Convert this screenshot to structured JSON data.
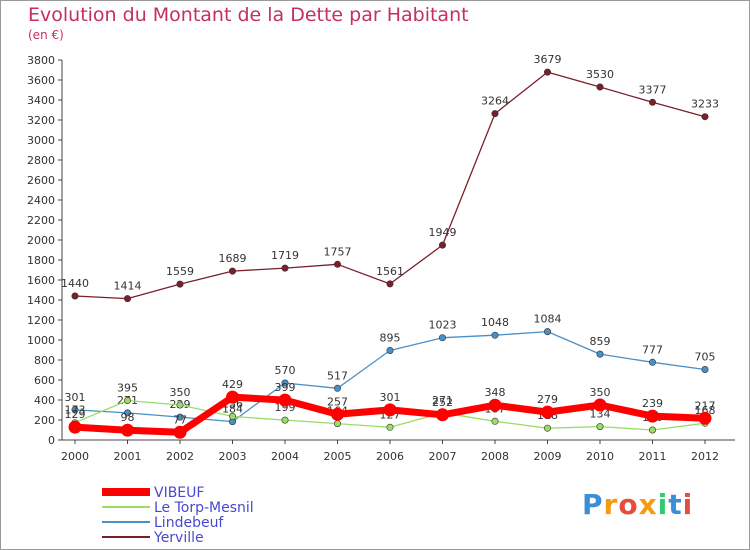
{
  "header": {
    "title": "Evolution du Montant de la Dette par Habitant",
    "subtitle": "(en €)"
  },
  "logo": {
    "letters": [
      "P",
      "r",
      "o",
      "x",
      "i",
      "t",
      "i"
    ],
    "colors": [
      "#3a8fd8",
      "#f39c12",
      "#e74c3c",
      "#f39c12",
      "#2ecc71",
      "#3a8fd8",
      "#e74c3c"
    ]
  },
  "chart_data": {
    "type": "line",
    "x": [
      2000,
      2001,
      2002,
      2003,
      2004,
      2005,
      2006,
      2007,
      2008,
      2009,
      2010,
      2011,
      2012
    ],
    "ylim": [
      0,
      3800
    ],
    "yticks": [
      0,
      200,
      400,
      600,
      800,
      1000,
      1200,
      1400,
      1600,
      1800,
      2000,
      2200,
      2400,
      2600,
      2800,
      3000,
      3200,
      3400,
      3600,
      3800
    ],
    "grid": false,
    "legend_position": "bottom-left",
    "series": [
      {
        "name": "Yerville",
        "color": "#7a1f2b",
        "values": [
          1440,
          1414,
          1559,
          1689,
          1719,
          1757,
          1561,
          1949,
          3264,
          3679,
          3530,
          3377,
          3233
        ]
      },
      {
        "name": "Lindebeuf",
        "color": "#4a90c8",
        "values": [
          301,
          271,
          229,
          184,
          570,
          517,
          895,
          1023,
          1048,
          1084,
          859,
          777,
          705
        ]
      },
      {
        "name": "Le Torp-Mesnil",
        "color": "#99dd66",
        "values": [
          173,
          395,
          350,
          236,
          199,
          164,
          127,
          271,
          187,
          118,
          134,
          100,
          168
        ]
      },
      {
        "name": "VIBEUF",
        "color": "#ff0000",
        "values": [
          129,
          98,
          77,
          429,
          399,
          257,
          301,
          252,
          348,
          279,
          350,
          239,
          217
        ]
      }
    ]
  }
}
